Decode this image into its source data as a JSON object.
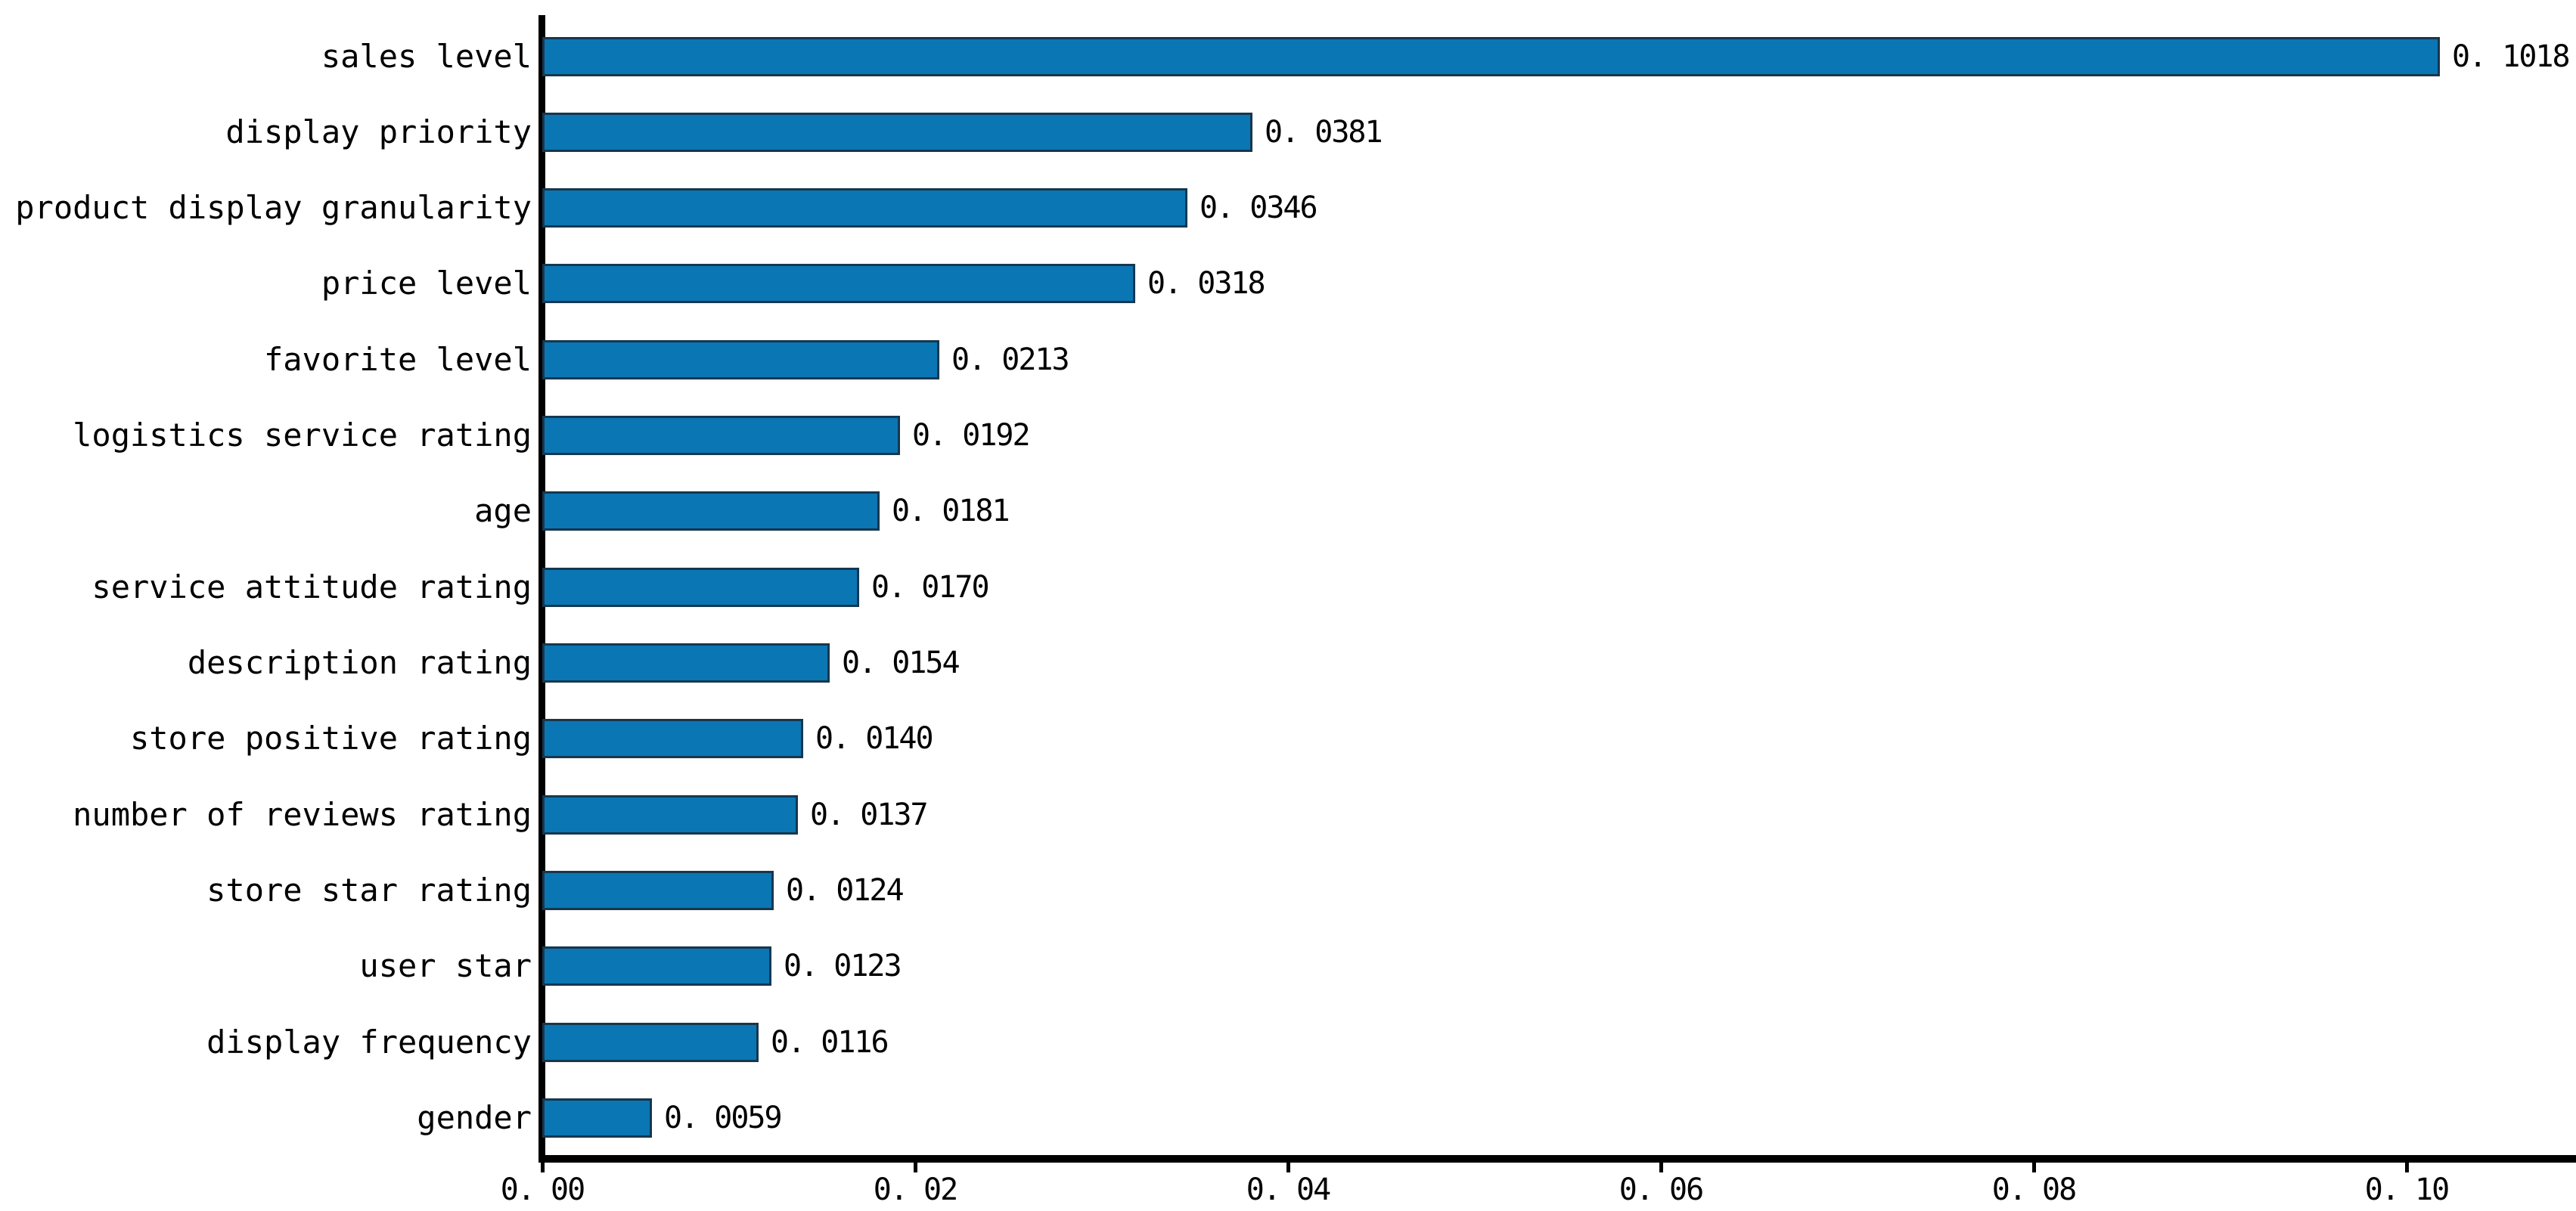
{
  "chart_data": {
    "type": "bar",
    "orientation": "horizontal",
    "title": "",
    "xlabel": "",
    "ylabel": "",
    "grid": false,
    "legend": null,
    "background": "#ffffff",
    "bar_color": "#0a76b4",
    "bar_edge_color": "#16374e",
    "axis_color": "#000000",
    "text_color": "#000000",
    "xlim": [
      0.0,
      0.1091
    ],
    "categories": [
      "sales level",
      "display priority",
      "product display granularity",
      "price level",
      "favorite level",
      "logistics service rating",
      "age",
      "service attitude rating",
      "description rating",
      "store positive rating",
      "number of reviews rating",
      "store star rating",
      "user star",
      "display frequency",
      "gender"
    ],
    "values": [
      0.1018,
      0.0381,
      0.0346,
      0.0318,
      0.0213,
      0.0192,
      0.0181,
      0.017,
      0.0154,
      0.014,
      0.0137,
      0.0124,
      0.0123,
      0.0116,
      0.0059
    ],
    "value_labels": [
      "0. 1018",
      "0. 0381",
      "0. 0346",
      "0. 0318",
      "0. 0213",
      "0. 0192",
      "0. 0181",
      "0. 0170",
      "0. 0154",
      "0. 0140",
      "0. 0137",
      "0. 0124",
      "0. 0123",
      "0. 0116",
      "0. 0059"
    ],
    "x_ticks": {
      "values": [
        0.0,
        0.02,
        0.04,
        0.06,
        0.08,
        0.1
      ],
      "labels": [
        "0. 00",
        "0. 02",
        "0. 04",
        "0. 06",
        "0. 08",
        "0. 10"
      ]
    }
  }
}
